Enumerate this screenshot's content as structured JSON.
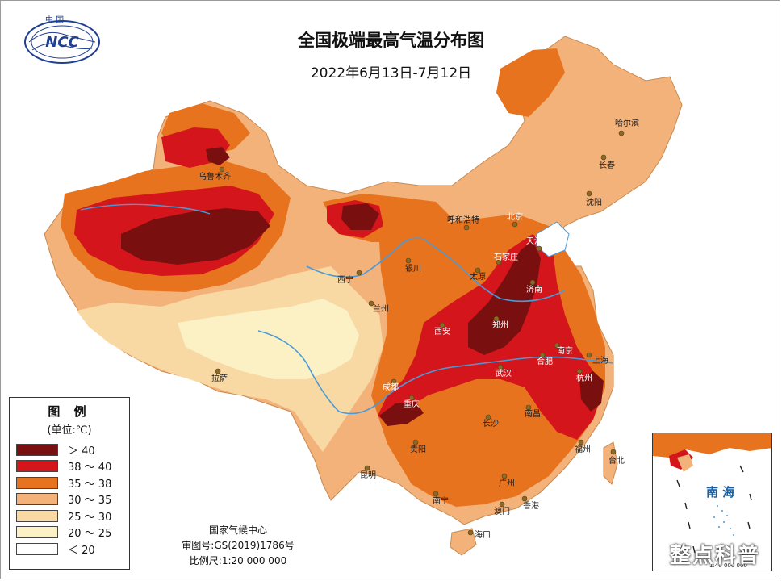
{
  "title": "全国极端最高气温分布图",
  "subtitle": "2022年6月13日-7月12日",
  "logo": {
    "top_text": "中 国",
    "text": "NCC"
  },
  "legend": {
    "title": "图 例",
    "unit": "(单位:℃)",
    "items": [
      {
        "label": "＞ 40",
        "color": "#7a0f0f"
      },
      {
        "label": "38 ～ 40",
        "color": "#d4161c"
      },
      {
        "label": "35 ～ 38",
        "color": "#e8731e"
      },
      {
        "label": "30 ～ 35",
        "color": "#f3b27a"
      },
      {
        "label": "25 ～ 30",
        "color": "#f8d9a4"
      },
      {
        "label": "20 ～ 25",
        "color": "#fbf1c4"
      },
      {
        "label": "＜ 20",
        "color": "#ffffff"
      }
    ]
  },
  "credits": {
    "org": "国家气候中心",
    "review": "审图号:GS(2019)1786号",
    "scale": "比例尺:1:20 000 000"
  },
  "inset": {
    "sea_label": "南 海",
    "scale": "1:40 000 000"
  },
  "cities": {
    "harbin": "哈尔滨",
    "changchun": "长春",
    "shenyang": "沈阳",
    "urumqi": "乌鲁木齐",
    "hohhot": "呼和浩特",
    "beijing": "北京",
    "tianjin": "天津",
    "shijiazhuang": "石家庄",
    "taiyuan": "太原",
    "jinan": "济南",
    "yinchuan": "银川",
    "xining": "西宁",
    "lanzhou": "兰州",
    "xian": "西安",
    "zhengzhou": "郑州",
    "nanjing": "南京",
    "hefei": "合肥",
    "shanghai": "上海",
    "hangzhou": "杭州",
    "wuhan": "武汉",
    "chengdu": "成都",
    "chongqing": "重庆",
    "lhasa": "拉萨",
    "changsha": "长沙",
    "nanchang": "南昌",
    "fuzhou": "福州",
    "taibei": "台北",
    "guiyang": "贵阳",
    "kunming": "昆明",
    "guangzhou": "广州",
    "nanning": "南宁",
    "hongkong": "香港",
    "macau": "澳门",
    "haikou": "海口"
  },
  "watermark": "整点科普"
}
